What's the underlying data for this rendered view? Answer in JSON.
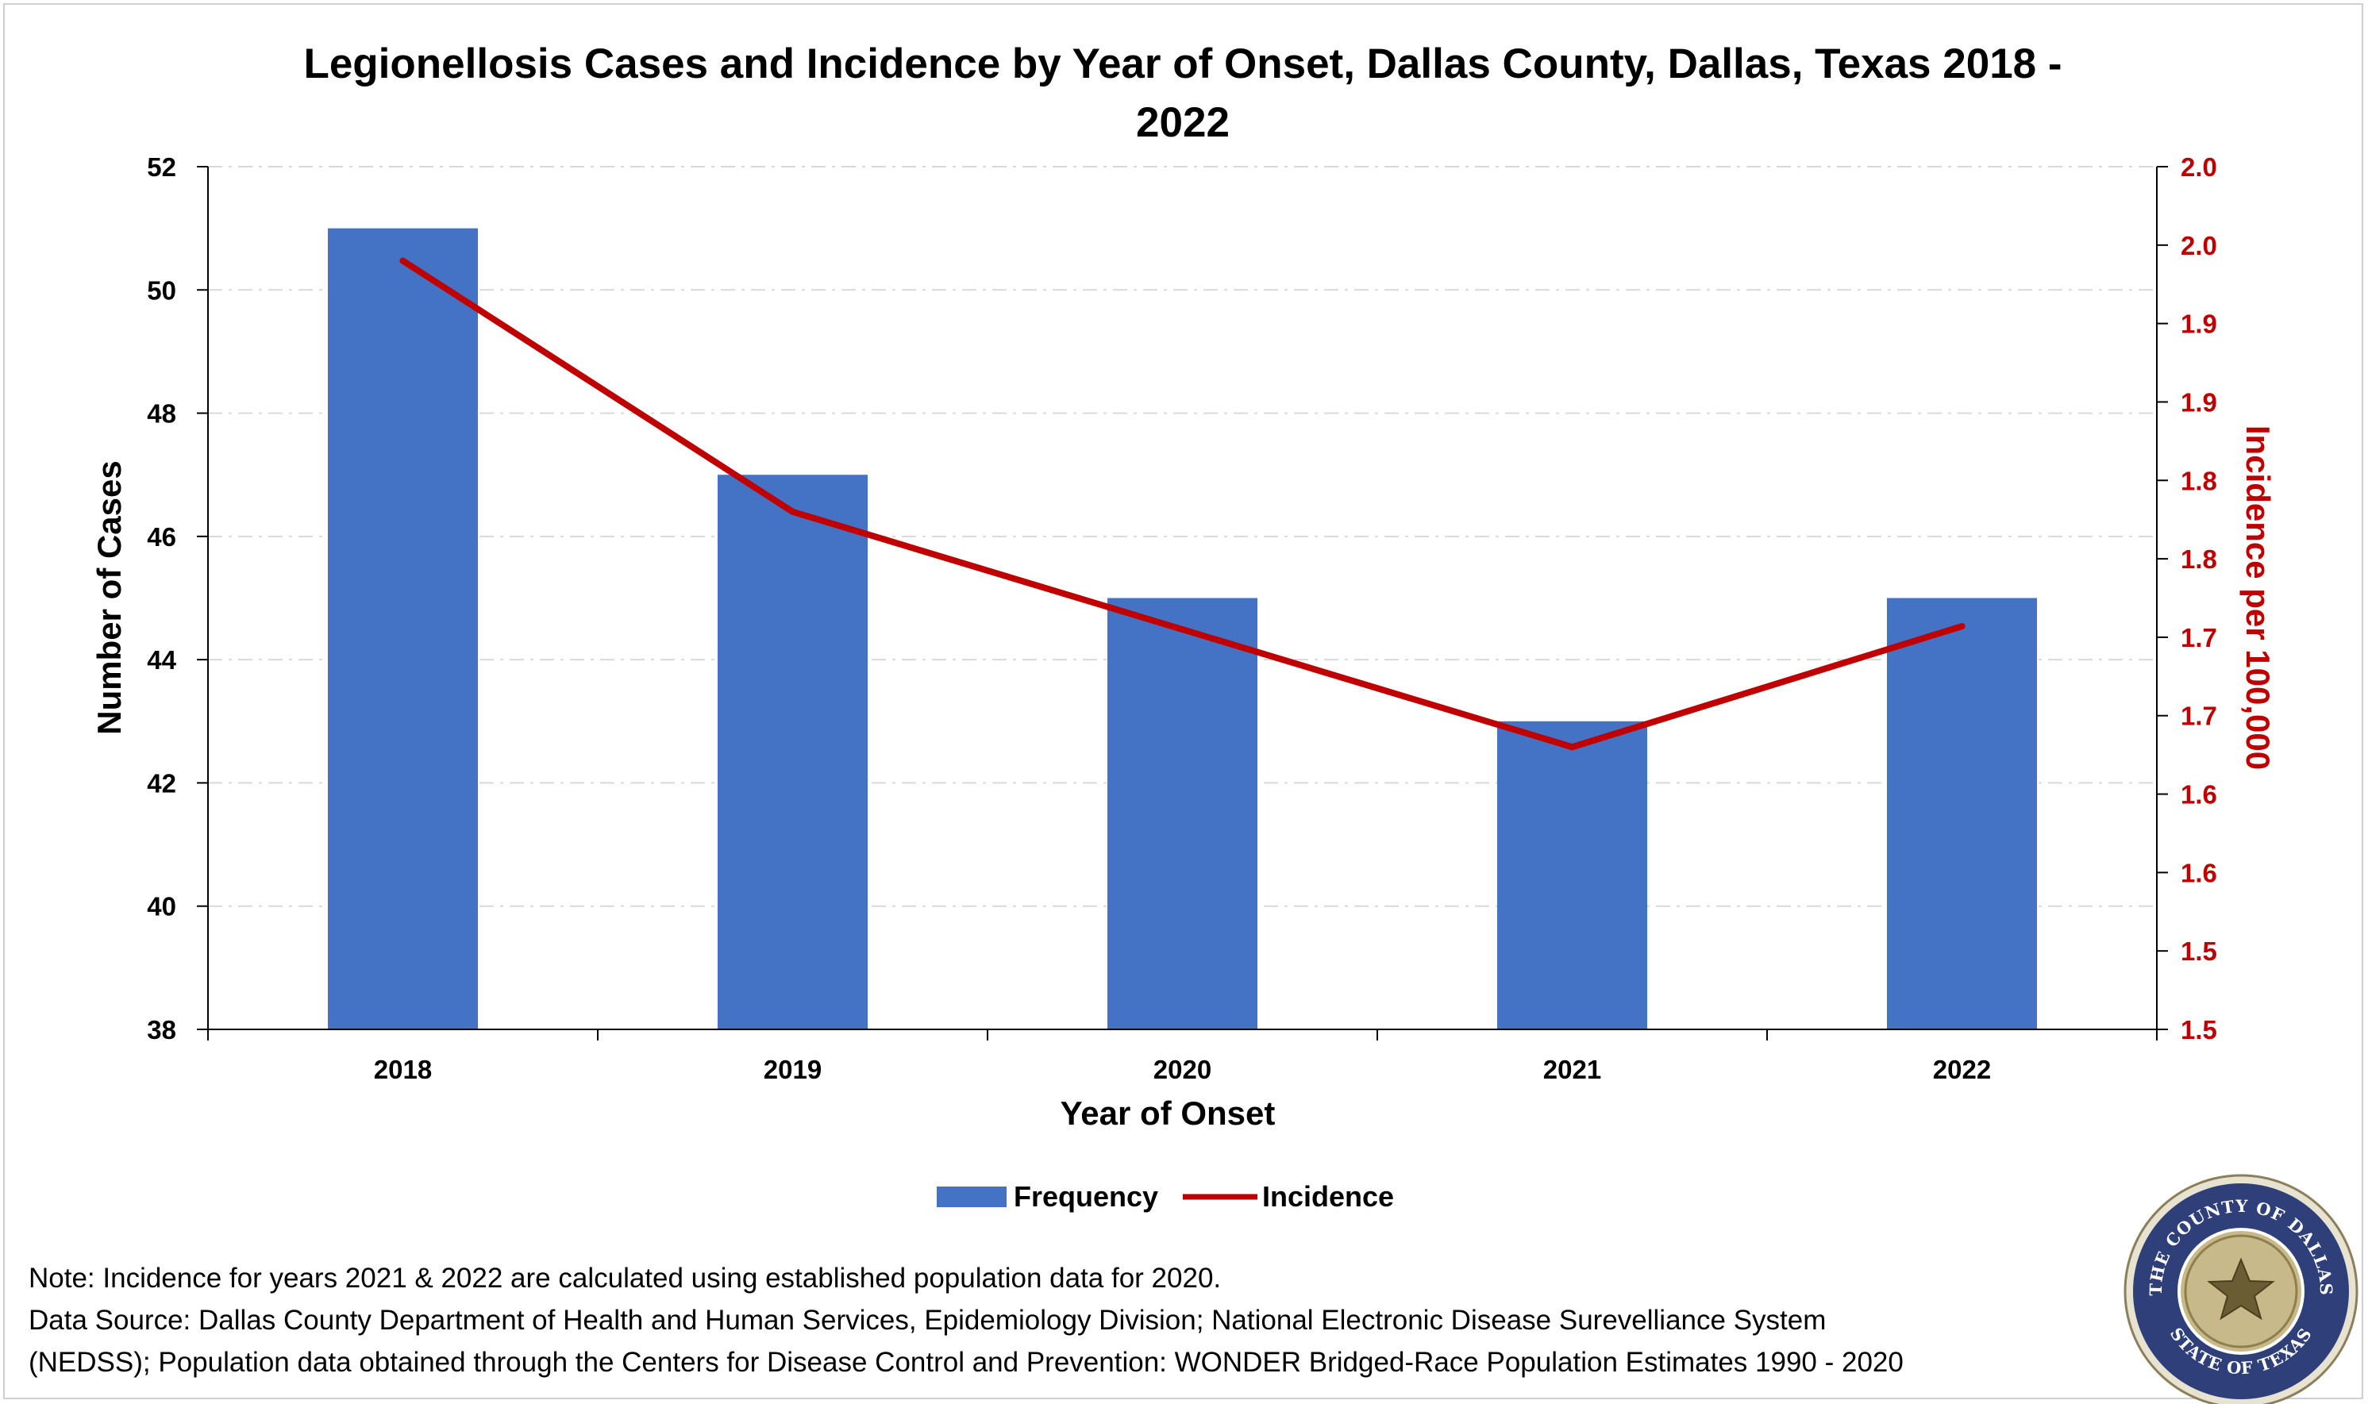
{
  "chart_data": {
    "type": "bar+line",
    "title": "Legionellosis Cases and Incidence by Year of Onset, Dallas County, Dallas, Texas 2018 - 2022",
    "title_lines": [
      "Legionellosis Cases and Incidence by Year of Onset, Dallas County, Dallas, Texas 2018 -",
      "2022"
    ],
    "xlabel": "Year of Onset",
    "ylabel": "Number of Cases",
    "y2label": "Incidence per 100,000",
    "categories": [
      "2018",
      "2019",
      "2020",
      "2021",
      "2022"
    ],
    "series": [
      {
        "name": "Frequency",
        "type": "bar",
        "axis": "left",
        "values": [
          51,
          47,
          45,
          43,
          45
        ],
        "color": "#4472c4"
      },
      {
        "name": "Incidence",
        "type": "line",
        "axis": "right",
        "values": [
          1.99,
          1.83,
          1.755,
          1.68,
          1.757
        ],
        "color": "#c00000"
      }
    ],
    "ylim": [
      38,
      52
    ],
    "y_ticks": [
      52,
      50,
      48,
      46,
      44,
      42,
      40,
      38
    ],
    "y2lim": [
      1.5,
      2.05
    ],
    "y2_tick_labels": [
      "2.0",
      "2.0",
      "1.9",
      "1.9",
      "1.8",
      "1.8",
      "1.7",
      "1.7",
      "1.6",
      "1.6",
      "1.5",
      "1.5"
    ],
    "grid": true,
    "legend_position": "bottom-center"
  },
  "legend": {
    "frequency_label": "Frequency",
    "incidence_label": "Incidence"
  },
  "notes": [
    "Note: Incidence for years 2021 & 2022 are calculated using established population data for 2020.",
    "Data Source: Dallas County Department of Health and Human Services, Epidemiology Division; National Electronic Disease Surevelliance System",
    "(NEDSS); Population data obtained through the Centers for Disease Control and Prevention: WONDER Bridged-Race Population Estimates 1990 - 2020"
  ],
  "seal": {
    "top_text": "THE COUNTY OF DALLAS",
    "bottom_text": "STATE OF TEXAS"
  },
  "colors": {
    "bar": "#4472c4",
    "line": "#c00000",
    "grid": "#d9d9d9",
    "seal_ring": "#2e3f7a",
    "seal_gold": "#c7b98a"
  }
}
